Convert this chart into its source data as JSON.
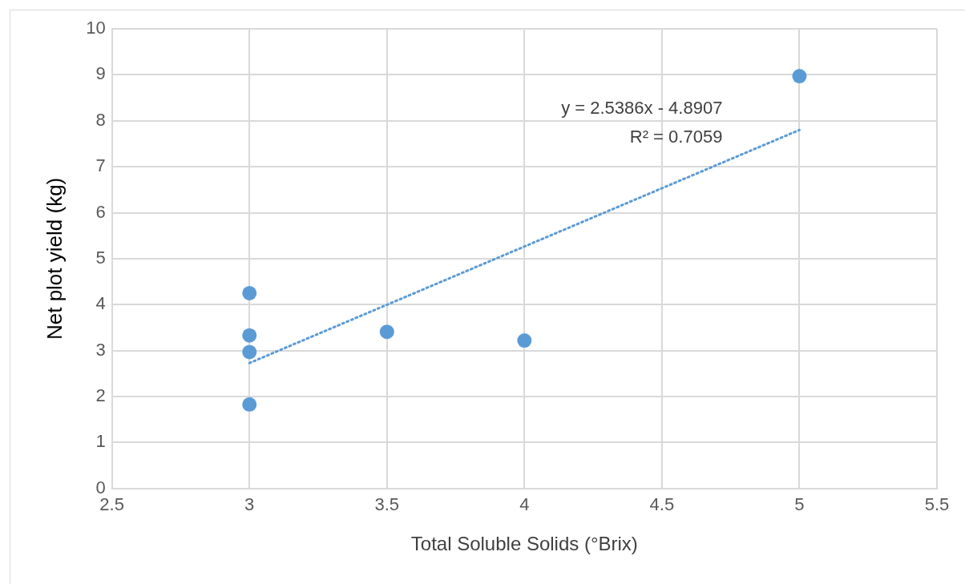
{
  "chart_data": {
    "type": "scatter",
    "xlabel": "Total Soluble Solids (°Brix)",
    "ylabel": "Net plot yield (kg)",
    "xlim": [
      2.5,
      5.5
    ],
    "xticks": [
      2.5,
      3,
      3.5,
      4,
      4.5,
      5,
      5.5
    ],
    "ylim": [
      0,
      10
    ],
    "yticks": [
      0,
      1,
      2,
      3,
      4,
      5,
      6,
      7,
      8,
      9,
      10
    ],
    "grid": true,
    "legend": false,
    "marker": "circle",
    "series": [
      {
        "color": "#5b9bd5",
        "x": [
          3,
          3,
          3,
          3,
          3.5,
          4,
          5
        ],
        "values": [
          4.25,
          3.33,
          2.97,
          1.83,
          3.41,
          3.22,
          8.97
        ]
      },
      {
        "type": "line",
        "color": "#5b9bd5",
        "line_style": "dotted",
        "marker": "none",
        "x": [
          3,
          5
        ],
        "values": [
          2.73,
          7.8
        ]
      }
    ],
    "annotations": [
      "y = 2.5386x - 4.8907",
      "R² = 0.7059"
    ]
  }
}
